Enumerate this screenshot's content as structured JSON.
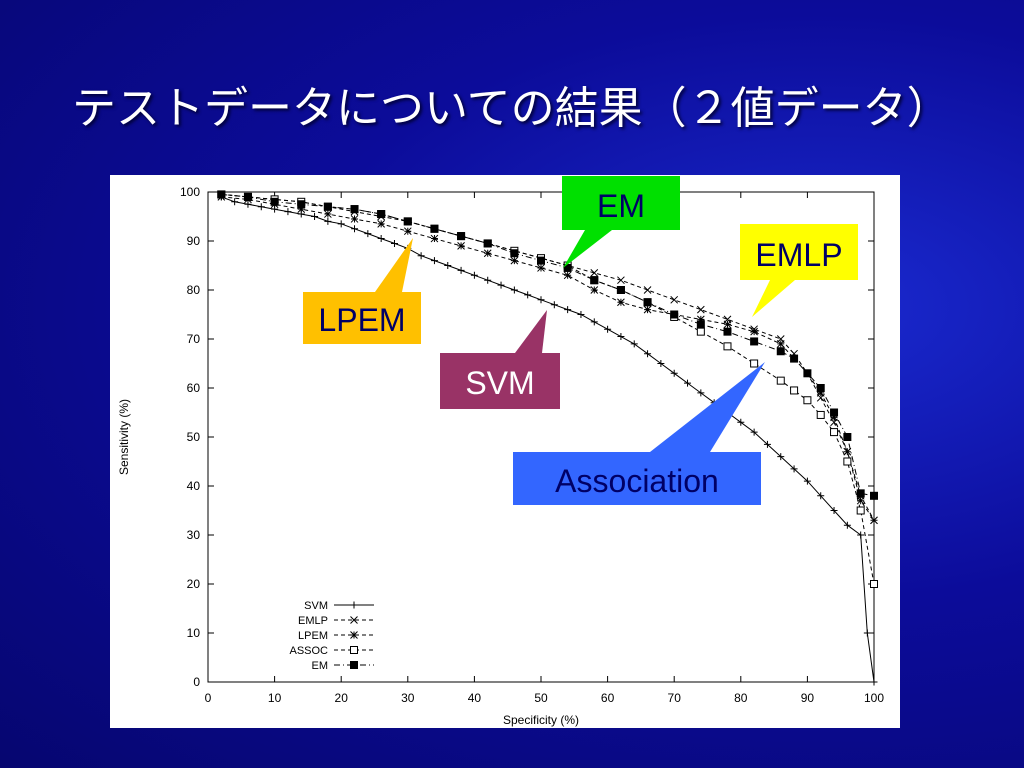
{
  "slide": {
    "title": "テストデータについての結果（２値データ）"
  },
  "callouts": [
    {
      "text": "EM",
      "bg": "#00e000",
      "fg": "#000066"
    },
    {
      "text": "EMLP",
      "bg": "#ffff00",
      "fg": "#000066"
    },
    {
      "text": "LPEM",
      "bg": "#ffc000",
      "fg": "#000066"
    },
    {
      "text": "SVM",
      "bg": "#993366",
      "fg": "#ffffff"
    },
    {
      "text": "Association",
      "bg": "#3366ff",
      "fg": "#000066"
    }
  ],
  "chart_data": {
    "type": "line",
    "title": "",
    "xlabel": "Specificity (%)",
    "ylabel": "Sensitivity (%)",
    "xlim": [
      0,
      100
    ],
    "ylim": [
      0,
      100
    ],
    "xticks": [
      0,
      10,
      20,
      30,
      40,
      50,
      60,
      70,
      80,
      90,
      100
    ],
    "yticks": [
      0,
      10,
      20,
      30,
      40,
      50,
      60,
      70,
      80,
      90,
      100
    ],
    "grid": false,
    "legend_position": "bottom-left",
    "series": [
      {
        "name": "SVM",
        "marker": "plus",
        "linestyle": "solid",
        "color": "#000000",
        "points": [
          [
            2,
            99
          ],
          [
            4,
            98
          ],
          [
            6,
            97.5
          ],
          [
            8,
            97
          ],
          [
            10,
            96.5
          ],
          [
            12,
            96
          ],
          [
            14,
            95.5
          ],
          [
            16,
            95
          ],
          [
            18,
            94
          ],
          [
            20,
            93.5
          ],
          [
            22,
            92.5
          ],
          [
            24,
            91.5
          ],
          [
            26,
            90.5
          ],
          [
            28,
            89.5
          ],
          [
            30,
            88.5
          ],
          [
            32,
            87
          ],
          [
            34,
            86
          ],
          [
            36,
            85
          ],
          [
            38,
            84
          ],
          [
            40,
            83
          ],
          [
            42,
            82
          ],
          [
            44,
            81
          ],
          [
            46,
            80
          ],
          [
            48,
            79
          ],
          [
            50,
            78
          ],
          [
            52,
            77
          ],
          [
            54,
            76
          ],
          [
            56,
            75
          ],
          [
            58,
            73.5
          ],
          [
            60,
            72
          ],
          [
            62,
            70.5
          ],
          [
            64,
            69
          ],
          [
            66,
            67
          ],
          [
            68,
            65
          ],
          [
            70,
            63
          ],
          [
            72,
            61
          ],
          [
            74,
            59
          ],
          [
            76,
            57
          ],
          [
            78,
            55
          ],
          [
            80,
            53
          ],
          [
            82,
            51
          ],
          [
            84,
            48.5
          ],
          [
            86,
            46
          ],
          [
            88,
            43.5
          ],
          [
            90,
            41
          ],
          [
            92,
            38
          ],
          [
            94,
            35
          ],
          [
            96,
            32
          ],
          [
            98,
            30
          ],
          [
            99,
            10
          ],
          [
            100,
            0
          ]
        ]
      },
      {
        "name": "EMLP",
        "marker": "x",
        "linestyle": "dashed",
        "color": "#000000",
        "points": [
          [
            2,
            99.5
          ],
          [
            6,
            99
          ],
          [
            10,
            98.5
          ],
          [
            14,
            98
          ],
          [
            18,
            97
          ],
          [
            22,
            96
          ],
          [
            26,
            95
          ],
          [
            30,
            94
          ],
          [
            34,
            92.5
          ],
          [
            38,
            91
          ],
          [
            42,
            89.5
          ],
          [
            46,
            88
          ],
          [
            50,
            86.5
          ],
          [
            54,
            85
          ],
          [
            58,
            83.5
          ],
          [
            62,
            82
          ],
          [
            66,
            80
          ],
          [
            70,
            78
          ],
          [
            74,
            76
          ],
          [
            78,
            74
          ],
          [
            82,
            72
          ],
          [
            86,
            70
          ],
          [
            88,
            67
          ],
          [
            90,
            63
          ],
          [
            92,
            58
          ],
          [
            94,
            53
          ],
          [
            96,
            47
          ],
          [
            98,
            38
          ],
          [
            100,
            33
          ]
        ]
      },
      {
        "name": "LPEM",
        "marker": "star",
        "linestyle": "dashed",
        "color": "#000000",
        "points": [
          [
            2,
            99
          ],
          [
            6,
            98.5
          ],
          [
            10,
            97.5
          ],
          [
            14,
            96.5
          ],
          [
            18,
            95.5
          ],
          [
            22,
            94.5
          ],
          [
            26,
            93.5
          ],
          [
            30,
            92
          ],
          [
            34,
            90.5
          ],
          [
            38,
            89
          ],
          [
            42,
            87.5
          ],
          [
            46,
            86
          ],
          [
            50,
            84.5
          ],
          [
            54,
            83
          ],
          [
            58,
            80
          ],
          [
            62,
            77.5
          ],
          [
            66,
            76
          ],
          [
            70,
            75
          ],
          [
            74,
            74
          ],
          [
            78,
            73
          ],
          [
            82,
            71.5
          ],
          [
            86,
            69
          ],
          [
            88,
            66
          ],
          [
            90,
            63
          ],
          [
            92,
            59
          ],
          [
            94,
            54
          ],
          [
            96,
            47
          ],
          [
            98,
            37
          ],
          [
            100,
            33
          ]
        ]
      },
      {
        "name": "ASSOC",
        "marker": "square-open",
        "linestyle": "dashed",
        "color": "#000000",
        "points": [
          [
            2,
            99.5
          ],
          [
            6,
            99
          ],
          [
            10,
            98.5
          ],
          [
            14,
            98
          ],
          [
            18,
            97
          ],
          [
            22,
            96.5
          ],
          [
            26,
            95.5
          ],
          [
            30,
            94
          ],
          [
            34,
            92.5
          ],
          [
            38,
            91
          ],
          [
            42,
            89.5
          ],
          [
            46,
            88
          ],
          [
            50,
            86.5
          ],
          [
            54,
            85
          ],
          [
            58,
            82
          ],
          [
            62,
            80
          ],
          [
            66,
            77.5
          ],
          [
            70,
            74.5
          ],
          [
            74,
            71.5
          ],
          [
            78,
            68.5
          ],
          [
            82,
            65
          ],
          [
            86,
            61.5
          ],
          [
            88,
            59.5
          ],
          [
            90,
            57.5
          ],
          [
            92,
            54.5
          ],
          [
            94,
            51
          ],
          [
            96,
            45
          ],
          [
            98,
            35
          ],
          [
            100,
            20
          ]
        ]
      },
      {
        "name": "EM",
        "marker": "square-filled",
        "linestyle": "dashdot",
        "color": "#000000",
        "points": [
          [
            2,
            99.5
          ],
          [
            6,
            99
          ],
          [
            10,
            98
          ],
          [
            14,
            97.5
          ],
          [
            18,
            97
          ],
          [
            22,
            96.5
          ],
          [
            26,
            95.5
          ],
          [
            30,
            94
          ],
          [
            34,
            92.5
          ],
          [
            38,
            91
          ],
          [
            42,
            89.5
          ],
          [
            46,
            87.5
          ],
          [
            50,
            86
          ],
          [
            54,
            84.5
          ],
          [
            58,
            82
          ],
          [
            62,
            80
          ],
          [
            66,
            77.5
          ],
          [
            70,
            75
          ],
          [
            74,
            73
          ],
          [
            78,
            71.5
          ],
          [
            82,
            69.5
          ],
          [
            86,
            67.5
          ],
          [
            88,
            66
          ],
          [
            90,
            63
          ],
          [
            92,
            60
          ],
          [
            94,
            55
          ],
          [
            96,
            50
          ],
          [
            98,
            38.5
          ],
          [
            100,
            38
          ]
        ]
      }
    ]
  }
}
